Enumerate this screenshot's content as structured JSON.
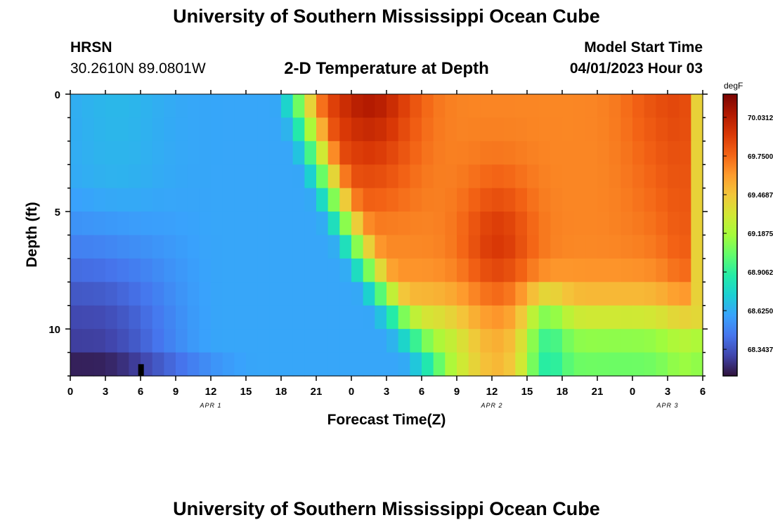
{
  "page": {
    "title": "University of Southern Mississippi Ocean Cube",
    "footer_title": "University of Southern Mississippi Ocean Cube",
    "station": "HRSN",
    "coords": "30.2610N  89.0801W",
    "plot_title": "2-D Temperature at Depth",
    "model_start_label": "Model Start Time",
    "model_start_value": "04/01/2023 Hour 03"
  },
  "chart_data": {
    "type": "heatmap",
    "title": "2-D Temperature at Depth",
    "xlabel": "Forecast Time(Z)",
    "ylabel": "Depth (ft)",
    "x_range_hours": [
      0,
      54
    ],
    "y_range_ft": [
      0,
      12
    ],
    "x_ticks": [
      "0",
      "3",
      "6",
      "9",
      "12",
      "15",
      "18",
      "21",
      "0",
      "3",
      "6",
      "9",
      "12",
      "15",
      "18",
      "21",
      "0",
      "3",
      "6"
    ],
    "date_labels": [
      {
        "label": "APR 1",
        "hour": 12
      },
      {
        "label": "APR 2",
        "hour": 36
      },
      {
        "label": "APR 3",
        "hour": 51
      }
    ],
    "y_ticks": [
      "0",
      "5",
      "10"
    ],
    "y_tick_values": [
      0,
      5,
      10
    ],
    "colorbar": {
      "unit": "degF",
      "min": 68.15,
      "max": 70.2,
      "labels": [
        "70.0312",
        "69.7500",
        "69.4687",
        "69.1875",
        "68.9062",
        "68.6250",
        "68.3437"
      ],
      "label_values": [
        70.0312,
        69.75,
        69.4687,
        69.1875,
        68.9062,
        68.625,
        68.3437
      ],
      "colors": [
        "#30123b",
        "#4145ab",
        "#4675ed",
        "#39a2fc",
        "#1bcfd4",
        "#24eca6",
        "#61fc6c",
        "#a4fc3b",
        "#d1e834",
        "#f3c63a",
        "#fe9b2d",
        "#f36315",
        "#d93806",
        "#b11901",
        "#7a0402"
      ]
    },
    "grid_time_steps": 54,
    "grid_depth_layers": 12
  }
}
